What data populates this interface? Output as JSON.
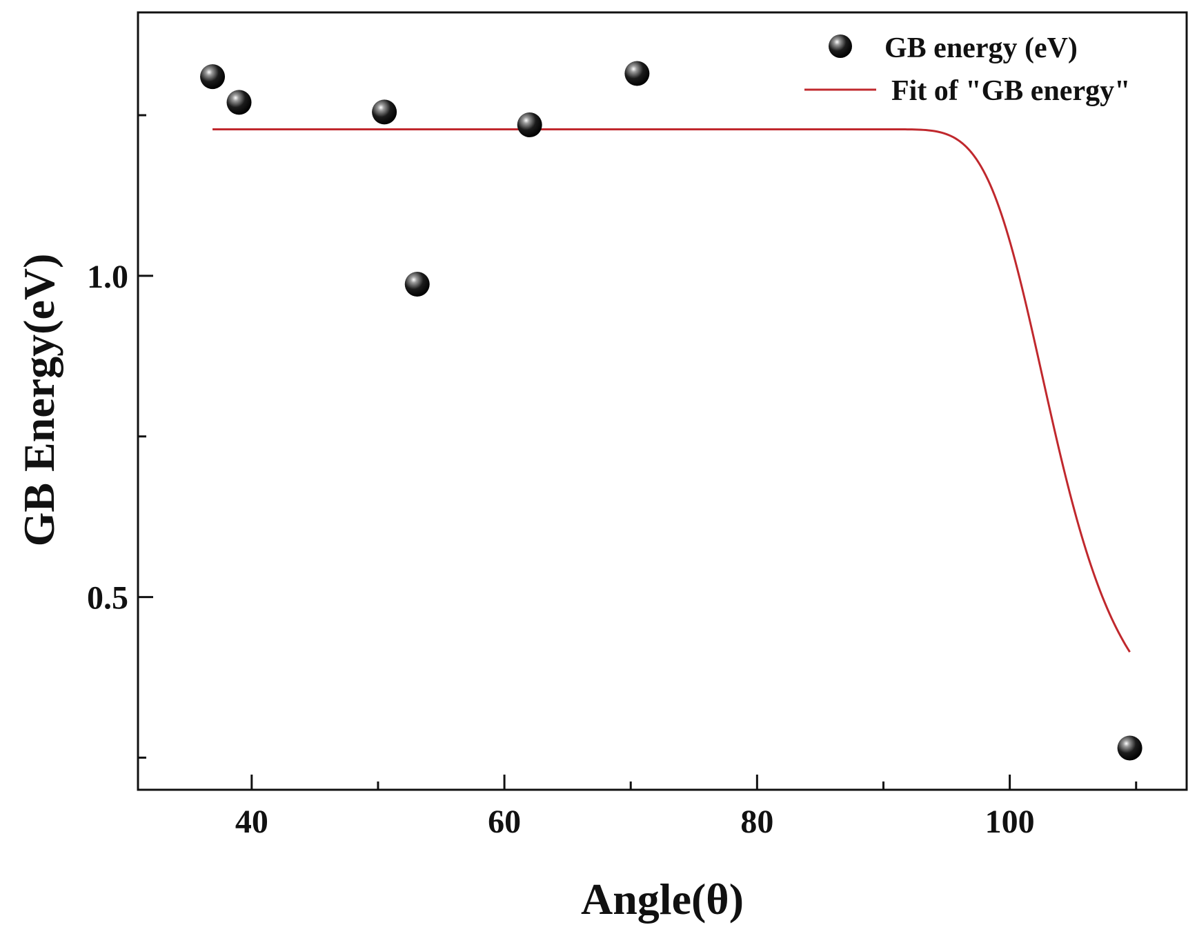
{
  "chart_data": {
    "type": "scatter",
    "title": "",
    "xlabel": "Angle(θ)",
    "ylabel": "GB Energy(eV)",
    "xlim": [
      31,
      114
    ],
    "ylim": [
      0.2,
      1.41
    ],
    "x_ticks": [
      40,
      60,
      80,
      100
    ],
    "x_tick_labels": [
      "40",
      "60",
      "80",
      "100"
    ],
    "x_minor_ticks": [
      50,
      70,
      90,
      110
    ],
    "y_ticks": [
      0.5,
      1.0
    ],
    "y_tick_labels": [
      "0.5",
      "1.0"
    ],
    "y_minor_ticks": [
      0.25,
      0.75,
      1.25
    ],
    "grid": false,
    "legend_position": "top-right",
    "series": [
      {
        "name": "GB energy (eV)",
        "kind": "scatter",
        "marker": "sphere",
        "color": "#111111",
        "x": [
          36.9,
          39.0,
          50.5,
          53.1,
          62.0,
          70.5,
          109.5
        ],
        "y": [
          1.31,
          1.27,
          1.255,
          0.987,
          1.235,
          1.315,
          0.265
        ]
      },
      {
        "name": "Fit of \"GB energy\"",
        "kind": "line",
        "color": "#c0282d",
        "x_range": [
          36.9,
          109.5
        ],
        "fit_plateau": 1.228,
        "fit_floor": 0.265,
        "fit_center": 103.7,
        "fit_width": 1.45,
        "fit_power": 2.4
      }
    ]
  }
}
